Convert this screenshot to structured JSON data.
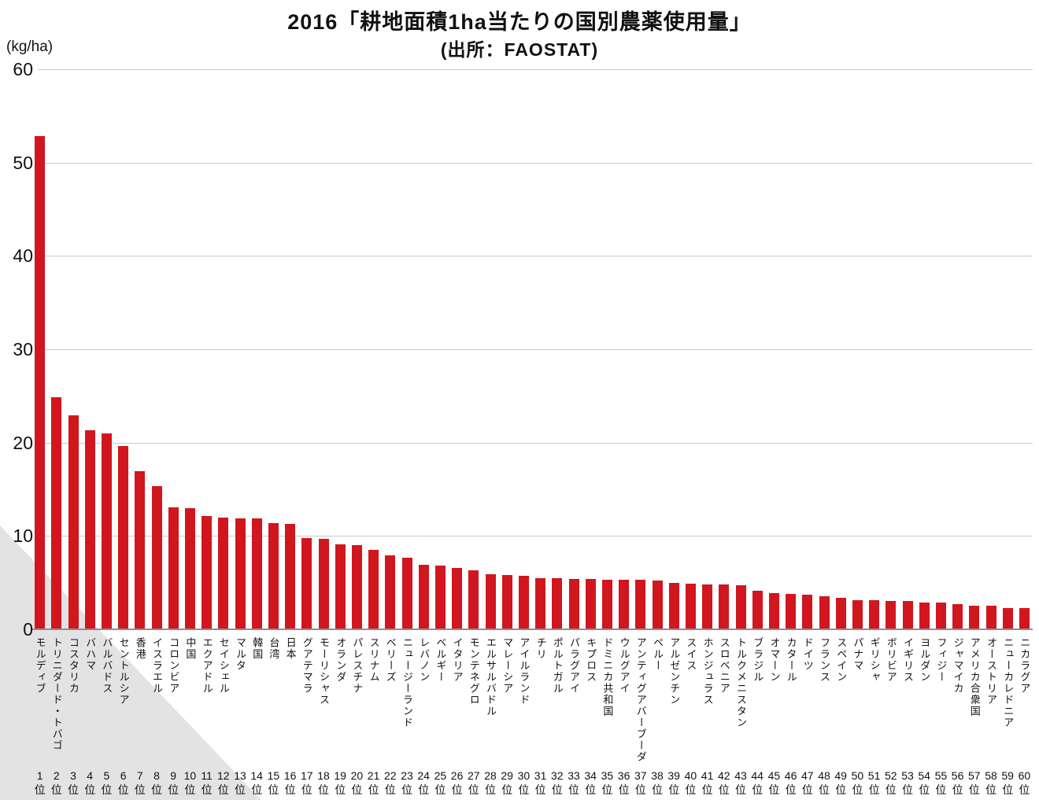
{
  "header": {
    "title": "2016「耕地面積1ha当たりの国別農薬使用量」",
    "subtitle": "(出所：FAOSTAT)"
  },
  "axis": {
    "unit_label": "(kg/ha)",
    "rank_suffix": "位"
  },
  "colors": {
    "bar": "#d1161e",
    "grid": "#c9c9c9",
    "baseline": "#8f8f8f",
    "corner": "#e3e3e3",
    "text": "#111111"
  },
  "chart_data": {
    "type": "bar",
    "title": "2016「耕地面積1ha当たりの国別農薬使用量」",
    "subtitle": "(出所：FAOSTAT)",
    "ylabel": "(kg/ha)",
    "ylim": [
      0,
      60
    ],
    "yticks": [
      0,
      10,
      20,
      30,
      40,
      50,
      60
    ],
    "grid": true,
    "legend": false,
    "categories": [
      "モルディブ",
      "トリニダード・トバゴ",
      "コスタリカ",
      "バハマ",
      "バルバドス",
      "セントルシア",
      "香港",
      "イスラエル",
      "コロンビア",
      "中国",
      "エクアドル",
      "セイシェル",
      "マルタ",
      "韓国",
      "台湾",
      "日本",
      "グアテマラ",
      "モーリシャス",
      "オランダ",
      "パレスチナ",
      "スリナム",
      "ベリーズ",
      "ニュージーランド",
      "レバノン",
      "ベルギー",
      "イタリア",
      "モンテネグロ",
      "エルサルバドル",
      "マレーシア",
      "アイルランド",
      "チリ",
      "ポルトガル",
      "パラグアイ",
      "キプロス",
      "ドミニカ共和国",
      "ウルグアイ",
      "アンティグアバーブーダ",
      "ペルー",
      "アルゼンチン",
      "スイス",
      "ホンジュラス",
      "スロベニア",
      "トルクメニスタン",
      "ブラジル",
      "オマーン",
      "カタール",
      "ドイツ",
      "フランス",
      "スペイン",
      "パナマ",
      "ギリシャ",
      "ボリビア",
      "イギリス",
      "ヨルダン",
      "フィジー",
      "ジャマイカ",
      "アメリカ合衆国",
      "オーストリア",
      "ニューカレドニア",
      "ニカラグア"
    ],
    "values": [
      52.8,
      24.9,
      22.9,
      21.3,
      21.0,
      19.6,
      16.9,
      15.3,
      13.1,
      13.0,
      12.1,
      12.0,
      11.9,
      11.9,
      11.4,
      11.3,
      9.8,
      9.7,
      9.1,
      9.0,
      8.5,
      7.9,
      7.7,
      6.9,
      6.8,
      6.6,
      6.3,
      5.9,
      5.8,
      5.7,
      5.5,
      5.5,
      5.4,
      5.4,
      5.3,
      5.3,
      5.3,
      5.2,
      5.0,
      4.9,
      4.8,
      4.8,
      4.7,
      4.1,
      3.9,
      3.8,
      3.7,
      3.5,
      3.4,
      3.1,
      3.1,
      3.0,
      3.0,
      2.9,
      2.9,
      2.7,
      2.5,
      2.5,
      2.3,
      2.3
    ],
    "ranks_start": 1
  }
}
